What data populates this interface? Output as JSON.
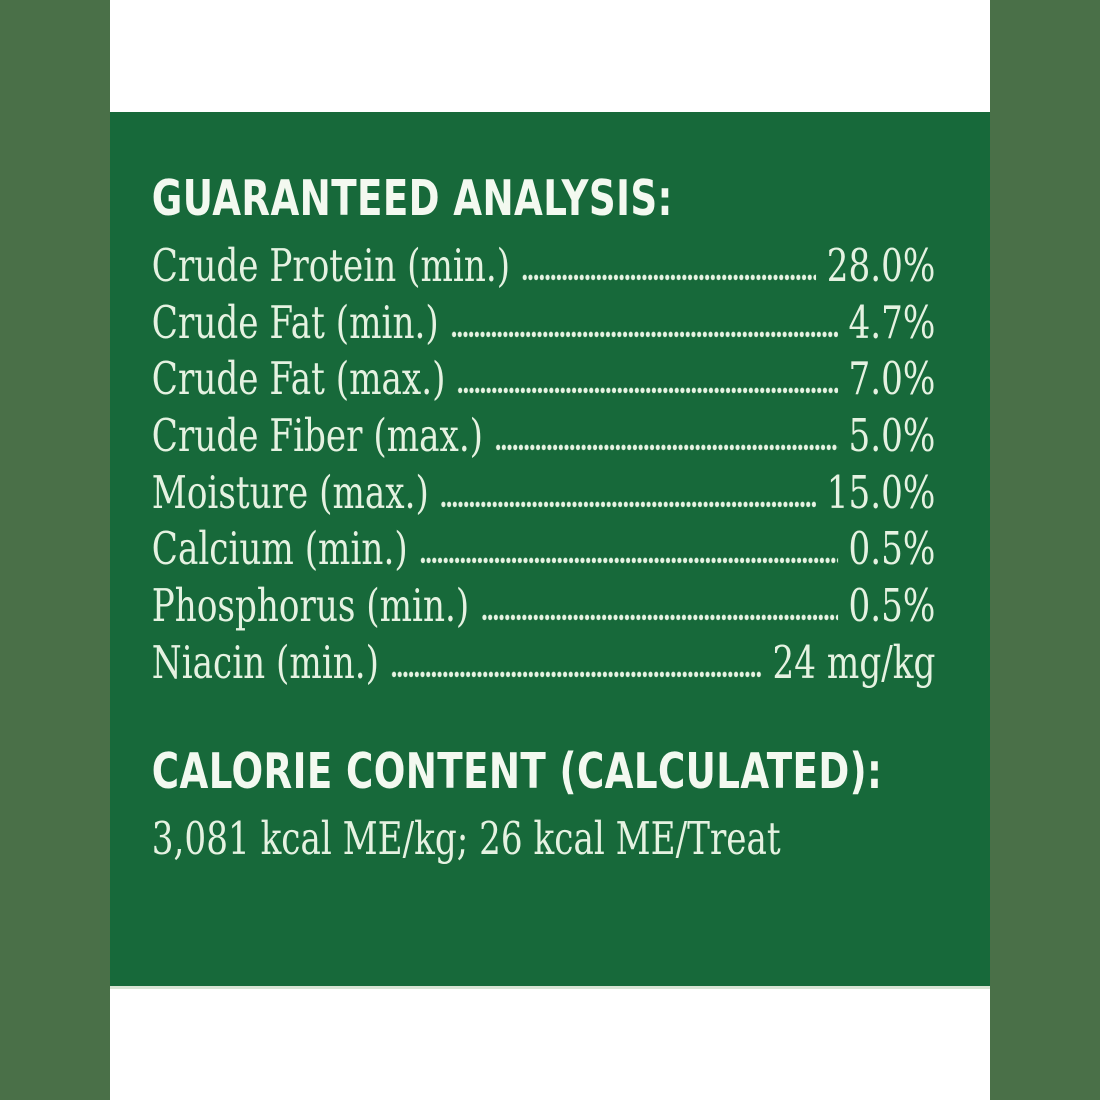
{
  "label": {
    "guaranteed_analysis": {
      "title": "GUARANTEED ANALYSIS:",
      "rows": [
        {
          "nutrient": "Crude Protein (min.)",
          "amount": "28.0%"
        },
        {
          "nutrient": "Crude Fat (min.)",
          "amount": "4.7%"
        },
        {
          "nutrient": "Crude Fat (max.)",
          "amount": "7.0%"
        },
        {
          "nutrient": "Crude Fiber (max.)",
          "amount": "5.0%"
        },
        {
          "nutrient": "Moisture (max.)",
          "amount": "15.0%"
        },
        {
          "nutrient": "Calcium (min.)",
          "amount": "0.5%"
        },
        {
          "nutrient": "Phosphorus (min.)",
          "amount": "0.5%"
        },
        {
          "nutrient": "Niacin (min.)",
          "amount": "24 mg/kg"
        }
      ]
    },
    "calorie_content": {
      "title": "CALORIE CONTENT (CALCULATED):",
      "value": "3,081 kcal ME/kg; 26 kcal ME/Treat"
    }
  },
  "colors": {
    "panel_green": "#17693a",
    "side_bar": "#4a7048",
    "background": "#ffffff",
    "text_light": "#e5f2e1",
    "heading_white": "#f3f9f0",
    "edge_line": "#d8e3d4"
  }
}
